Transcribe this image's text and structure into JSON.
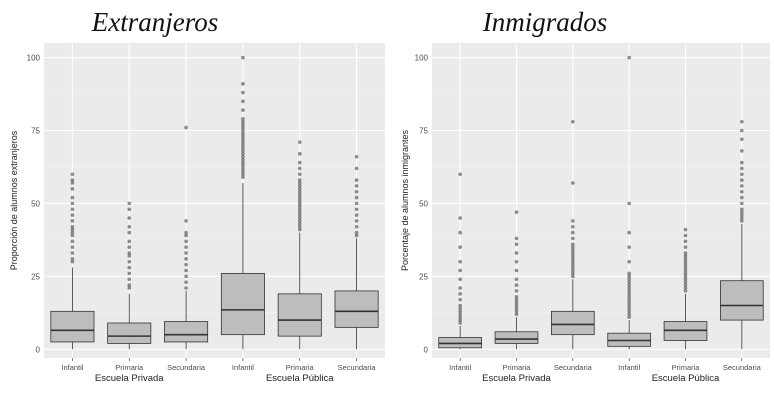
{
  "chart_data": [
    {
      "type": "boxplot",
      "title": "Extranjeros",
      "ylabel": "Proporción de alumnos extranjeros",
      "ylim": [
        -3,
        105
      ],
      "yticks": [
        0,
        25,
        50,
        75,
        100
      ],
      "categories": [
        "Infantil",
        "Primaria",
        "Secundaria",
        "Infantil",
        "Primaria",
        "Secundaria"
      ],
      "groups": [
        "Escuela Privada",
        "Escuela Pública"
      ],
      "boxes": [
        {
          "category": "Infantil",
          "group": "Escuela Privada",
          "min": 0,
          "q1": 2.5,
          "median": 6.5,
          "q3": 13,
          "max": 28,
          "outliers": [
            30,
            31,
            33,
            35,
            37,
            39,
            40,
            41,
            42,
            44,
            46,
            48,
            50,
            52,
            55,
            57,
            58,
            60
          ]
        },
        {
          "category": "Primaria",
          "group": "Escuela Privada",
          "min": 0,
          "q1": 2,
          "median": 4.5,
          "q3": 9,
          "max": 19,
          "outliers": [
            21,
            22,
            24,
            26,
            28,
            30,
            32,
            33,
            35,
            37,
            40,
            42,
            45,
            48,
            50
          ]
        },
        {
          "category": "Secundaria",
          "group": "Escuela Privada",
          "min": 0,
          "q1": 2.5,
          "median": 5,
          "q3": 9.5,
          "max": 20,
          "outliers": [
            21,
            23,
            25,
            27,
            29,
            31,
            33,
            35,
            37,
            39,
            40,
            44,
            76
          ]
        },
        {
          "category": "Infantil",
          "group": "Escuela Pública",
          "min": 0,
          "q1": 5,
          "median": 13.5,
          "q3": 26,
          "max": 57,
          "outliers": [
            59,
            60,
            61,
            62,
            63,
            64,
            65,
            66,
            67,
            68,
            69,
            70,
            71,
            72,
            73,
            74,
            75,
            76,
            77,
            78,
            79,
            82,
            85,
            88,
            91,
            100
          ]
        },
        {
          "category": "Primaria",
          "group": "Escuela Pública",
          "min": 0,
          "q1": 4.5,
          "median": 10,
          "q3": 19,
          "max": 40,
          "outliers": [
            41,
            42,
            43,
            44,
            45,
            46,
            47,
            48,
            49,
            50,
            51,
            52,
            53,
            54,
            55,
            56,
            57,
            58,
            60,
            62,
            64,
            67,
            71
          ]
        },
        {
          "category": "Secundaria",
          "group": "Escuela Pública",
          "min": 0,
          "q1": 7.5,
          "median": 13,
          "q3": 20,
          "max": 38,
          "outliers": [
            39,
            40,
            42,
            44,
            46,
            48,
            50,
            52,
            54,
            56,
            58,
            62,
            66
          ]
        }
      ]
    },
    {
      "type": "boxplot",
      "title": "Inmigrados",
      "ylabel": "Porcentaje de alumnos inmigrantes",
      "ylim": [
        -3,
        105
      ],
      "yticks": [
        0,
        25,
        50,
        75,
        100
      ],
      "categories": [
        "Infantil",
        "Primaria",
        "Secundaria",
        "Infantil",
        "Primaria",
        "Secundaria"
      ],
      "groups": [
        "Escuela Privada",
        "Escuela Pública"
      ],
      "boxes": [
        {
          "category": "Infantil",
          "group": "Escuela Privada",
          "min": 0,
          "q1": 0.5,
          "median": 2,
          "q3": 4,
          "max": 8,
          "outliers": [
            9,
            10,
            11,
            12,
            13,
            14,
            15,
            17,
            19,
            21,
            24,
            27,
            30,
            35,
            40,
            45,
            60
          ]
        },
        {
          "category": "Primaria",
          "group": "Escuela Privada",
          "min": 0,
          "q1": 2,
          "median": 3.5,
          "q3": 6,
          "max": 11,
          "outliers": [
            12,
            13,
            14,
            15,
            16,
            17,
            18,
            20,
            22,
            24,
            27,
            30,
            33,
            36,
            38,
            47
          ]
        },
        {
          "category": "Secundaria",
          "group": "Escuela Privada",
          "min": 0,
          "q1": 5,
          "median": 8.5,
          "q3": 13,
          "max": 24,
          "outliers": [
            25,
            26,
            27,
            28,
            29,
            30,
            31,
            32,
            33,
            34,
            35,
            36,
            38,
            40,
            42,
            44,
            57,
            78
          ]
        },
        {
          "category": "Infantil",
          "group": "Escuela Pública",
          "min": 0,
          "q1": 1,
          "median": 3,
          "q3": 5.5,
          "max": 10,
          "outliers": [
            11,
            12,
            13,
            14,
            15,
            16,
            17,
            18,
            19,
            20,
            21,
            22,
            23,
            24,
            25,
            26,
            30,
            35,
            40,
            50,
            100
          ]
        },
        {
          "category": "Primaria",
          "group": "Escuela Pública",
          "min": 0,
          "q1": 3,
          "median": 6.5,
          "q3": 9.5,
          "max": 19,
          "outliers": [
            20,
            21,
            22,
            23,
            24,
            25,
            26,
            27,
            28,
            29,
            30,
            31,
            32,
            33,
            35,
            37,
            39,
            41
          ]
        },
        {
          "category": "Secundaria",
          "group": "Escuela Pública",
          "min": 0,
          "q1": 10,
          "median": 15,
          "q3": 23.5,
          "max": 43,
          "outliers": [
            44,
            45,
            46,
            47,
            48,
            50,
            52,
            54,
            56,
            58,
            60,
            62,
            64,
            68,
            72,
            75,
            78
          ]
        }
      ]
    }
  ]
}
